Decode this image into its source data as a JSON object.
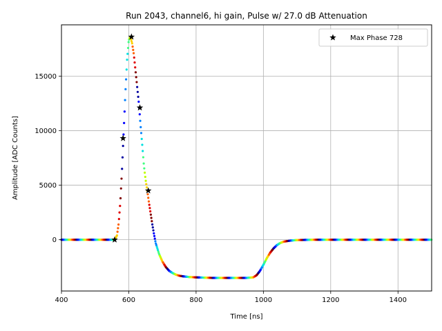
{
  "chart_data": {
    "type": "scatter",
    "title": "Run 2043, channel6, hi gain, Pulse w/ 27.0 dB Attenuation",
    "xlabel": "Time [ns]",
    "ylabel": "Amplitude [ADC Counts]",
    "xlim": [
      400,
      1500
    ],
    "ylim": [
      -4700,
      19700
    ],
    "xticks": [
      400,
      600,
      800,
      1000,
      1200,
      1400
    ],
    "yticks": [
      0,
      5000,
      10000,
      15000
    ],
    "grid": true,
    "legend_position": "top-right",
    "pulse_waveform": {
      "x": [
        400,
        555,
        560,
        565,
        570,
        575,
        580,
        585,
        590,
        595,
        600,
        605,
        610,
        615,
        620,
        625,
        630,
        635,
        640,
        645,
        650,
        655,
        660,
        665,
        670,
        675,
        680,
        690,
        700,
        710,
        720,
        730,
        740,
        750,
        760,
        780,
        800,
        850,
        900,
        950,
        970,
        980,
        990,
        1000,
        1010,
        1020,
        1030,
        1040,
        1050,
        1060,
        1080,
        1100,
        1150,
        1200,
        1300,
        1400,
        1500
      ],
      "y": [
        0,
        0,
        100,
        400,
        1500,
        3500,
        6500,
        10000,
        13500,
        16500,
        18300,
        18600,
        18000,
        17000,
        15500,
        14000,
        12500,
        10500,
        8700,
        6800,
        5500,
        4500,
        3400,
        2400,
        1400,
        500,
        -300,
        -1300,
        -2000,
        -2500,
        -2850,
        -3050,
        -3200,
        -3300,
        -3350,
        -3420,
        -3450,
        -3500,
        -3500,
        -3500,
        -3450,
        -3250,
        -2850,
        -2300,
        -1700,
        -1200,
        -800,
        -500,
        -300,
        -180,
        -80,
        -30,
        0,
        0,
        0,
        0,
        0
      ]
    },
    "max_phase_series": {
      "name": "Max Phase 728",
      "x": [
        558,
        583,
        608,
        633,
        658
      ],
      "y": [
        0,
        9300,
        18600,
        12100,
        4500
      ]
    },
    "colors": {
      "marker": "#000000",
      "grid": "#b0b0b0",
      "colormap": [
        "#0000a0",
        "#0000ff",
        "#0080ff",
        "#00e0e0",
        "#40ff80",
        "#c0ff00",
        "#ffd000",
        "#ff6000",
        "#e00000",
        "#800000"
      ]
    }
  }
}
